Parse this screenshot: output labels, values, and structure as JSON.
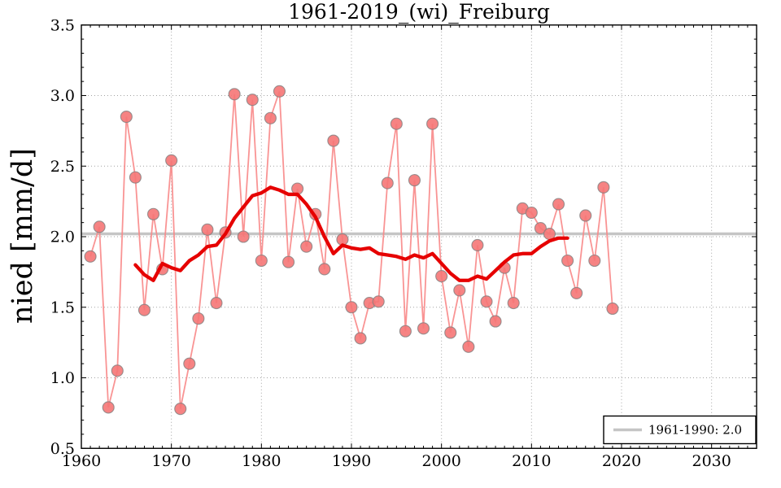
{
  "figure": {
    "title": "1961-2019_(wi)_Freiburg",
    "ylabel": "nied [mm/d]"
  },
  "chart_data": {
    "type": "line",
    "title": "1961-2019_(wi)_Freiburg",
    "xlabel": "",
    "ylabel": "nied [mm/d]",
    "xlim": [
      1960,
      2035
    ],
    "ylim": [
      0.5,
      3.5
    ],
    "grid": true,
    "xticks": [
      1960,
      1970,
      1980,
      1990,
      2000,
      2010,
      2020,
      2030
    ],
    "xtick_labels": [
      "1960",
      "1970",
      "1980",
      "1990",
      "2000",
      "2010",
      "2020",
      "2030"
    ],
    "yticks": [
      0.5,
      1.0,
      1.5,
      2.0,
      2.5,
      3.0,
      3.5
    ],
    "ytick_labels": [
      "0.5",
      "1.0",
      "1.5",
      "2.0",
      "2.5",
      "3.0",
      "3.5"
    ],
    "series": [
      {
        "name": "annual-values",
        "style": "line+markers",
        "line_color": "#f88888",
        "marker_fill": "#f57575",
        "marker_edge": "#808080",
        "x": [
          1961,
          1962,
          1963,
          1964,
          1965,
          1966,
          1967,
          1968,
          1969,
          1970,
          1971,
          1972,
          1973,
          1974,
          1975,
          1976,
          1977,
          1978,
          1979,
          1980,
          1981,
          1982,
          1983,
          1984,
          1985,
          1986,
          1987,
          1988,
          1989,
          1990,
          1991,
          1992,
          1993,
          1994,
          1995,
          1996,
          1997,
          1998,
          1999,
          2000,
          2001,
          2002,
          2003,
          2004,
          2005,
          2006,
          2007,
          2008,
          2009,
          2010,
          2011,
          2012,
          2013,
          2014,
          2015,
          2016,
          2017,
          2018,
          2019
        ],
        "values": [
          1.86,
          2.07,
          0.79,
          1.05,
          2.85,
          2.42,
          1.48,
          2.16,
          1.77,
          2.54,
          0.78,
          1.1,
          1.42,
          2.05,
          1.53,
          2.03,
          3.01,
          2.0,
          2.97,
          1.83,
          2.84,
          3.03,
          1.82,
          2.34,
          1.93,
          2.16,
          1.77,
          2.68,
          1.98,
          1.5,
          1.28,
          1.53,
          1.54,
          2.38,
          2.8,
          1.33,
          2.4,
          1.35,
          2.8,
          1.72,
          1.32,
          1.62,
          1.22,
          1.94,
          1.54,
          1.4,
          1.78,
          1.53,
          2.2,
          2.17,
          2.06,
          2.02,
          2.23,
          1.83,
          1.6,
          2.15,
          1.83,
          2.35,
          1.49
        ]
      },
      {
        "name": "smoothed-trend",
        "style": "line",
        "line_color": "#e60000",
        "x": [
          1966,
          1967,
          1968,
          1969,
          1970,
          1971,
          1972,
          1973,
          1974,
          1975,
          1976,
          1977,
          1978,
          1979,
          1980,
          1981,
          1982,
          1983,
          1984,
          1985,
          1986,
          1987,
          1988,
          1989,
          1990,
          1991,
          1992,
          1993,
          1994,
          1995,
          1996,
          1997,
          1998,
          1999,
          2000,
          2001,
          2002,
          2003,
          2004,
          2005,
          2006,
          2007,
          2008,
          2009,
          2010,
          2011,
          2012,
          2013,
          2014
        ],
        "values": [
          1.8,
          1.73,
          1.69,
          1.81,
          1.78,
          1.76,
          1.83,
          1.87,
          1.93,
          1.94,
          2.02,
          2.13,
          2.21,
          2.29,
          2.31,
          2.35,
          2.33,
          2.3,
          2.3,
          2.23,
          2.14,
          2.0,
          1.88,
          1.94,
          1.92,
          1.91,
          1.92,
          1.88,
          1.87,
          1.86,
          1.84,
          1.87,
          1.85,
          1.88,
          1.81,
          1.74,
          1.69,
          1.69,
          1.72,
          1.7,
          1.76,
          1.82,
          1.87,
          1.88,
          1.88,
          1.93,
          1.97,
          1.99,
          1.99
        ]
      }
    ],
    "reference_line": {
      "name": "climate-normal-1961-1990",
      "value": 2.02,
      "color": "#c5c5c5",
      "label": "1961-1990: 2.0"
    },
    "legend": {
      "position": "lower right",
      "entries": [
        {
          "label": "1961-1990: 2.0",
          "line_color": "#c5c5c5"
        }
      ]
    },
    "colors": {
      "background": "#ffffff",
      "grid": "#999999",
      "axes": "#000000"
    }
  }
}
